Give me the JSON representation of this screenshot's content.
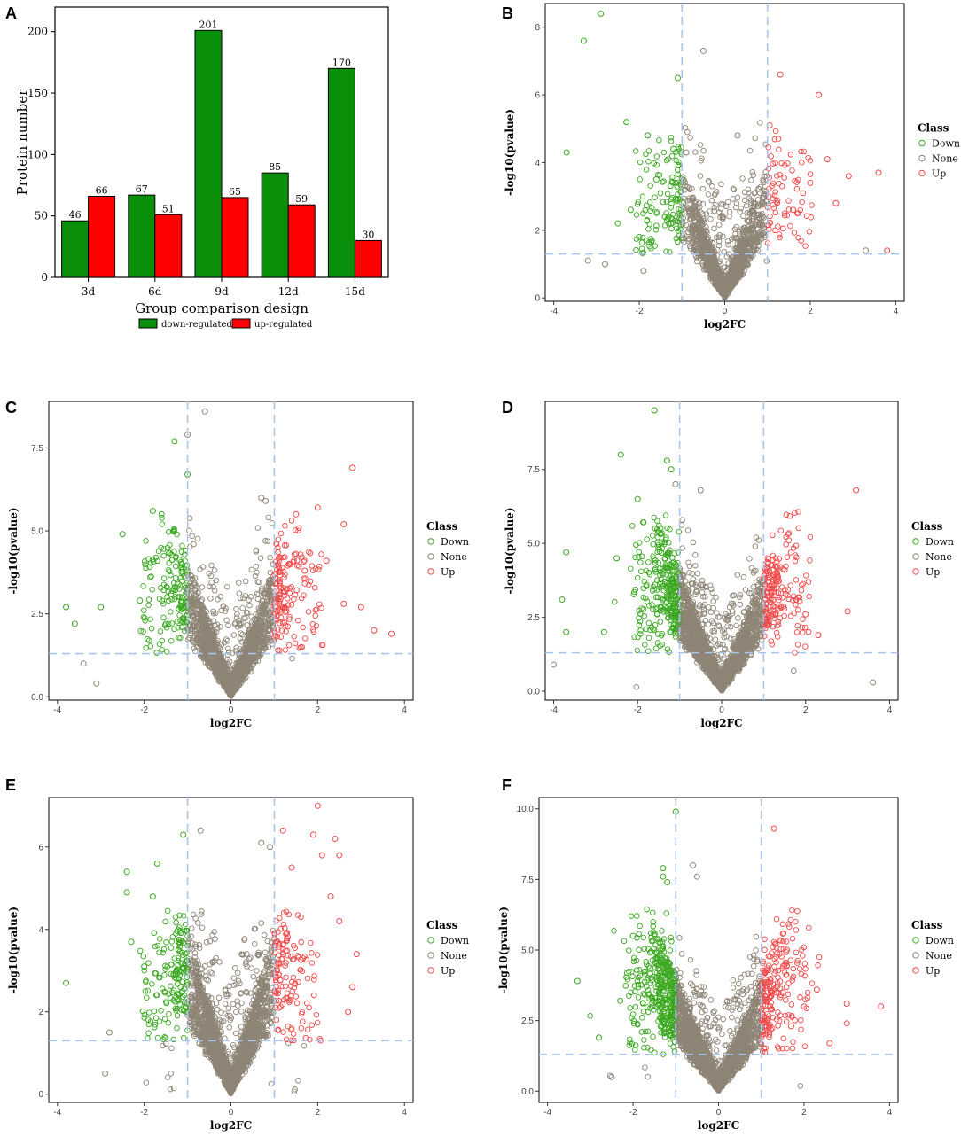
{
  "figure": {
    "panels": [
      "A",
      "B",
      "C",
      "D",
      "E",
      "F"
    ]
  },
  "colors": {
    "down_bar": "#0a8f0a",
    "up_bar": "#ff0000",
    "down_point": "#3aa81f",
    "none_point": "#8e8576",
    "up_point": "#f04a4a",
    "threshold_line": "#a9c4ea"
  },
  "chart_data": [
    {
      "panel": "A",
      "type": "bar",
      "title": "",
      "xlabel": "Group comparison design",
      "ylabel": "Protein number",
      "categories": [
        "3d",
        "6d",
        "9d",
        "12d",
        "15d"
      ],
      "series": [
        {
          "name": "down-regulated",
          "values": [
            46,
            67,
            201,
            85,
            170
          ]
        },
        {
          "name": "up-regulated",
          "values": [
            66,
            51,
            65,
            59,
            30
          ]
        }
      ],
      "ylim": [
        0,
        220
      ],
      "yticks": [
        0,
        50,
        100,
        150,
        200
      ],
      "legend": "bottom"
    },
    {
      "panel": "B",
      "type": "scatter",
      "xlabel": "log2FC",
      "ylabel": "-log10(pvalue)",
      "xlim": [
        -4.2,
        4.2
      ],
      "ylim": [
        -0.1,
        8.7
      ],
      "xticks": [
        -4,
        -2,
        0,
        2,
        4
      ],
      "yticks": [
        0,
        2,
        4,
        6,
        8
      ],
      "ytick_labels": [
        "0",
        "2",
        "4",
        "6",
        "8"
      ],
      "fc_threshold": 1,
      "p_threshold": 1.3,
      "legend_title": "Class",
      "legend": [
        "Down",
        "None",
        "Up"
      ],
      "highlight_points": {
        "Down": [
          [
            -2.9,
            8.4
          ],
          [
            -3.3,
            7.6
          ],
          [
            -1.1,
            6.5
          ],
          [
            -2.3,
            5.2
          ],
          [
            -1.8,
            4.8
          ],
          [
            -3.7,
            4.3
          ],
          [
            -1.2,
            4.4
          ],
          [
            -1.6,
            3.5
          ],
          [
            -2.2,
            2.6
          ],
          [
            -2.5,
            2.2
          ],
          [
            -1.4,
            2.4
          ],
          [
            -2.0,
            1.8
          ]
        ],
        "None": [
          [
            -0.5,
            7.3
          ],
          [
            -3.2,
            1.1
          ],
          [
            -2.8,
            1.0
          ],
          [
            0.3,
            4.8
          ],
          [
            -0.9,
            4.3
          ],
          [
            3.3,
            1.4
          ],
          [
            -1.9,
            0.8
          ]
        ],
        "Up": [
          [
            1.3,
            6.6
          ],
          [
            2.2,
            6.0
          ],
          [
            1.05,
            5.1
          ],
          [
            2.4,
            4.1
          ],
          [
            3.6,
            3.7
          ],
          [
            2.9,
            3.6
          ],
          [
            3.8,
            1.4
          ],
          [
            2.0,
            3.4
          ],
          [
            1.6,
            2.6
          ],
          [
            2.6,
            2.8
          ]
        ]
      }
    },
    {
      "panel": "C",
      "type": "scatter",
      "xlabel": "log2FC",
      "ylabel": "-log10(pvalue)",
      "xlim": [
        -4.2,
        4.2
      ],
      "ylim": [
        -0.1,
        8.9
      ],
      "xticks": [
        -4,
        -2,
        0,
        2,
        4
      ],
      "yticks": [
        0,
        2.5,
        5,
        7.5
      ],
      "ytick_labels": [
        "0.0",
        "2.5",
        "5.0",
        "7.5"
      ],
      "fc_threshold": 1,
      "p_threshold": 1.3,
      "legend_title": "Class",
      "legend": [
        "Down",
        "None",
        "Up"
      ],
      "highlight_points": {
        "Down": [
          [
            -1.3,
            7.7
          ],
          [
            -1.0,
            6.7
          ],
          [
            -1.8,
            5.6
          ],
          [
            -1.6,
            5.5
          ],
          [
            -2.5,
            4.9
          ],
          [
            -3.8,
            2.7
          ],
          [
            -3.0,
            2.7
          ],
          [
            -3.6,
            2.2
          ],
          [
            -2.1,
            2.9
          ],
          [
            -1.5,
            2.2
          ]
        ],
        "None": [
          [
            -0.6,
            8.6
          ],
          [
            -1.0,
            7.9
          ],
          [
            0.7,
            6.0
          ],
          [
            0.8,
            5.9
          ],
          [
            -3.4,
            1.0
          ],
          [
            -3.1,
            0.4
          ]
        ],
        "Up": [
          [
            2.8,
            6.9
          ],
          [
            2.0,
            5.7
          ],
          [
            1.5,
            5.5
          ],
          [
            2.6,
            5.2
          ],
          [
            2.2,
            4.1
          ],
          [
            3.0,
            2.7
          ],
          [
            3.3,
            2.0
          ],
          [
            3.7,
            1.9
          ],
          [
            2.6,
            2.8
          ],
          [
            1.7,
            3.8
          ]
        ]
      }
    },
    {
      "panel": "D",
      "type": "scatter",
      "xlabel": "log2FC",
      "ylabel": "-log10(pvalue)",
      "xlim": [
        -4.2,
        4.2
      ],
      "ylim": [
        -0.3,
        9.8
      ],
      "xticks": [
        -4,
        -2,
        0,
        2,
        4
      ],
      "yticks": [
        0,
        2.5,
        5,
        7.5
      ],
      "ytick_labels": [
        "0.0",
        "2.5",
        "5.0",
        "7.5"
      ],
      "fc_threshold": 1,
      "p_threshold": 1.3,
      "legend_title": "Class",
      "legend": [
        "Down",
        "None",
        "Up"
      ],
      "highlight_points": {
        "Down": [
          [
            -1.6,
            9.5
          ],
          [
            -2.4,
            8.0
          ],
          [
            -1.3,
            7.8
          ],
          [
            -1.2,
            7.5
          ],
          [
            -2.0,
            6.5
          ],
          [
            -3.7,
            4.7
          ],
          [
            -3.8,
            3.1
          ],
          [
            -3.7,
            2.0
          ],
          [
            -2.5,
            4.5
          ],
          [
            -2.8,
            2.0
          ]
        ],
        "None": [
          [
            -1.1,
            7.0
          ],
          [
            -0.5,
            6.8
          ],
          [
            3.6,
            0.3
          ],
          [
            -4.0,
            0.9
          ]
        ],
        "Up": [
          [
            3.2,
            6.8
          ],
          [
            1.6,
            5.1
          ],
          [
            3.0,
            2.7
          ],
          [
            2.0,
            2.6
          ],
          [
            1.5,
            4.1
          ],
          [
            2.3,
            1.9
          ]
        ]
      }
    },
    {
      "panel": "E",
      "type": "scatter",
      "xlabel": "log2FC",
      "ylabel": "-log10(pvalue)",
      "xlim": [
        -4.2,
        4.2
      ],
      "ylim": [
        -0.2,
        7.2
      ],
      "xticks": [
        -4,
        -2,
        0,
        2,
        4
      ],
      "yticks": [
        0,
        2,
        4,
        6
      ],
      "ytick_labels": [
        "0",
        "2",
        "4",
        "6"
      ],
      "fc_threshold": 1,
      "p_threshold": 1.3,
      "legend_title": "Class",
      "legend": [
        "Down",
        "None",
        "Up"
      ],
      "highlight_points": {
        "Down": [
          [
            -1.1,
            6.3
          ],
          [
            -1.7,
            5.6
          ],
          [
            -2.4,
            5.4
          ],
          [
            -2.4,
            4.9
          ],
          [
            -1.8,
            4.8
          ],
          [
            -2.3,
            3.7
          ],
          [
            -3.8,
            2.7
          ],
          [
            -2.0,
            3.1
          ]
        ],
        "None": [
          [
            -0.7,
            6.4
          ],
          [
            0.7,
            6.1
          ],
          [
            0.9,
            6.0
          ],
          [
            -2.8,
            1.5
          ],
          [
            -2.9,
            0.5
          ]
        ],
        "Up": [
          [
            2.0,
            7.0
          ],
          [
            1.9,
            6.3
          ],
          [
            1.2,
            6.4
          ],
          [
            2.4,
            6.2
          ],
          [
            2.1,
            5.8
          ],
          [
            2.5,
            5.8
          ],
          [
            1.4,
            5.5
          ],
          [
            2.3,
            4.8
          ],
          [
            2.5,
            4.2
          ],
          [
            2.9,
            3.4
          ],
          [
            2.8,
            2.6
          ],
          [
            2.7,
            2.0
          ]
        ]
      }
    },
    {
      "panel": "F",
      "type": "scatter",
      "xlabel": "log2FC",
      "ylabel": "-log10(pvalue)",
      "xlim": [
        -4.2,
        4.2
      ],
      "ylim": [
        -0.4,
        10.4
      ],
      "xticks": [
        -4,
        -2,
        0,
        2,
        4
      ],
      "yticks": [
        0,
        2.5,
        5,
        7.5,
        10
      ],
      "ytick_labels": [
        "0.0",
        "2.5",
        "5.0",
        "7.5",
        "10.0"
      ],
      "fc_threshold": 1,
      "p_threshold": 1.3,
      "legend_title": "Class",
      "legend": [
        "Down",
        "None",
        "Up"
      ],
      "highlight_points": {
        "Down": [
          [
            -1.0,
            9.9
          ],
          [
            -1.3,
            7.9
          ],
          [
            -1.3,
            7.6
          ],
          [
            -1.2,
            7.4
          ],
          [
            -2.0,
            5.5
          ],
          [
            -3.3,
            3.9
          ],
          [
            -2.8,
            1.9
          ],
          [
            -2.3,
            3.2
          ]
        ],
        "None": [
          [
            -0.6,
            8.0
          ],
          [
            -0.5,
            7.6
          ],
          [
            0.9,
            4.6
          ],
          [
            -2.5,
            0.5
          ]
        ],
        "Up": [
          [
            1.3,
            9.3
          ],
          [
            1.6,
            5.0
          ],
          [
            2.3,
            3.6
          ],
          [
            3.0,
            3.1
          ],
          [
            3.8,
            3.0
          ],
          [
            2.0,
            3.0
          ],
          [
            3.0,
            2.4
          ],
          [
            1.5,
            3.5
          ],
          [
            2.6,
            1.7
          ],
          [
            1.7,
            2.3
          ]
        ]
      }
    }
  ]
}
